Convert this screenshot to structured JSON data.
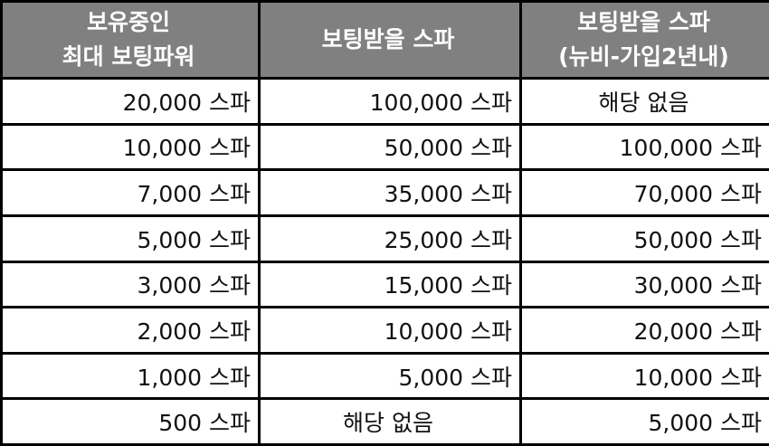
{
  "headers": [
    [
      "보유중인",
      "최대 보팅파워"
    ],
    [
      "보팅받을 스파"
    ],
    [
      "보팅받을 스파",
      "(뉴비-가입2년내)"
    ]
  ],
  "colors": {
    "header_bg": "#808080",
    "header_text": "#ffffff",
    "border": "#000000"
  },
  "rows": [
    [
      "20,000 스파",
      "100,000 스파",
      "해당 없음"
    ],
    [
      "10,000 스파",
      "50,000 스파",
      "100,000 스파"
    ],
    [
      "7,000 스파",
      "35,000 스파",
      "70,000 스파"
    ],
    [
      "5,000 스파",
      "25,000 스파",
      "50,000 스파"
    ],
    [
      "3,000 스파",
      "15,000 스파",
      "30,000 스파"
    ],
    [
      "2,000 스파",
      "10,000 스파",
      "20,000 스파"
    ],
    [
      "1,000 스파",
      "5,000 스파",
      "10,000 스파"
    ],
    [
      "500 스파",
      "해당 없음",
      "5,000 스파"
    ]
  ]
}
